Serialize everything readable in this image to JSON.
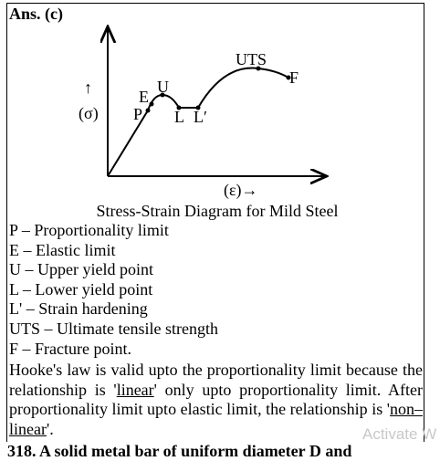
{
  "answer": "Ans. (c)",
  "diagram": {
    "y_arrow": "↑",
    "y_label": "(σ)",
    "x_label": "(ε)→",
    "points": {
      "P": "P",
      "E": "E",
      "U": "U",
      "L": "L",
      "L_prime": "L′",
      "UTS": "UTS",
      "F": "F"
    },
    "caption": "Stress-Strain Diagram for Mild Steel"
  },
  "definitions": [
    "P – Proportionality limit",
    "E – Elastic limit",
    "U – Upper yield point",
    "L – Lower yield point",
    "L' – Strain hardening",
    "UTS – Ultimate tensile strength",
    "F – Fracture point."
  ],
  "paragraph": [
    "Hooke's law is valid upto the proportionality limit because the relationship is '",
    "linear",
    "' only upto proportionality limit. After proportionality limit upto elastic limit, the relationship is '",
    "non–linear",
    "'."
  ],
  "watermark": "Activate W",
  "next_question": "318. A solid metal bar of uniform diameter D and"
}
